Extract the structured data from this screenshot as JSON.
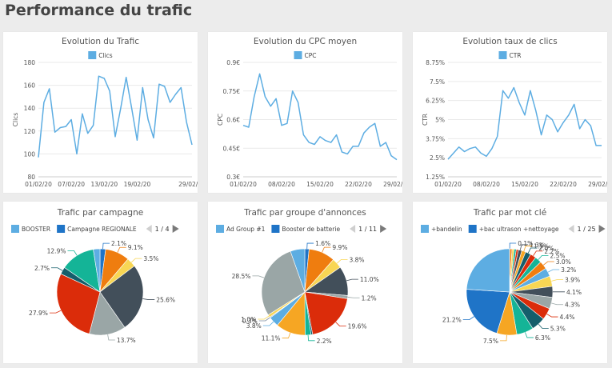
{
  "page": {
    "title": "Performance du trafic"
  },
  "colors": {
    "line": "#5dade2",
    "legend_blue": "#5dade2",
    "legend_darkblue": "#1f74c7",
    "pager_off": "#cfcfcf",
    "pager_on": "#7a7a7a"
  },
  "chart_data": [
    {
      "type": "line",
      "title": "Evolution du Trafic",
      "ylabel": "Clics",
      "legend": [
        "Clics"
      ],
      "x_tick_labels": [
        "01/02/20",
        "07/02/20",
        "13/02/20",
        "19/02/20",
        "29/02/20"
      ],
      "x_tick_index": [
        0,
        6,
        12,
        18,
        28
      ],
      "y_ticks": [
        "80",
        "100",
        "120",
        "140",
        "160",
        "180"
      ],
      "ylim": [
        80,
        180
      ],
      "series": [
        {
          "name": "Clics",
          "values": [
            97,
            145,
            157,
            119,
            123,
            124,
            130,
            100,
            135,
            118,
            125,
            168,
            166,
            155,
            115,
            140,
            167,
            140,
            112,
            158,
            130,
            114,
            161,
            159,
            145,
            152,
            158,
            128,
            108
          ]
        }
      ]
    },
    {
      "type": "line",
      "title": "Evolution du CPC moyen",
      "ylabel": "CPC",
      "legend": [
        "CPC"
      ],
      "x_tick_labels": [
        "01/02/20",
        "08/02/20",
        "15/02/20",
        "22/02/20",
        "29/02/20"
      ],
      "x_tick_index": [
        0,
        7,
        14,
        21,
        28
      ],
      "y_ticks": [
        "0.3€",
        "0.45€",
        "0.6€",
        "0.75€",
        "0.9€"
      ],
      "ylim": [
        0.3,
        0.9
      ],
      "series": [
        {
          "name": "CPC",
          "values": [
            0.57,
            0.56,
            0.72,
            0.84,
            0.72,
            0.67,
            0.71,
            0.57,
            0.58,
            0.75,
            0.69,
            0.52,
            0.48,
            0.47,
            0.51,
            0.49,
            0.48,
            0.52,
            0.43,
            0.42,
            0.46,
            0.46,
            0.53,
            0.56,
            0.58,
            0.46,
            0.48,
            0.41,
            0.39
          ]
        }
      ]
    },
    {
      "type": "line",
      "title": "Evolution taux de clics",
      "ylabel": "CTR",
      "legend": [
        "CTR"
      ],
      "x_tick_labels": [
        "01/02/20",
        "08/02/20",
        "15/02/20",
        "22/02/20",
        "29/02/20"
      ],
      "x_tick_index": [
        0,
        7,
        14,
        21,
        28
      ],
      "y_ticks": [
        "1.25%",
        "2.5%",
        "3.75%",
        "5%",
        "6.25%",
        "7.5%",
        "8.75%"
      ],
      "ylim": [
        1.25,
        8.75
      ],
      "series": [
        {
          "name": "CTR",
          "values": [
            2.4,
            2.8,
            3.2,
            2.9,
            3.1,
            3.2,
            2.8,
            2.6,
            3.1,
            3.9,
            6.9,
            6.4,
            7.1,
            6.1,
            5.3,
            6.9,
            5.6,
            4.0,
            5.3,
            5.0,
            4.2,
            4.8,
            5.3,
            6.0,
            4.4,
            5.0,
            4.6,
            3.3,
            3.3
          ]
        }
      ]
    },
    {
      "type": "pie",
      "title": "Trafic par campagne",
      "legend": [
        "BOOSTER",
        "Campagne REGIONALE"
      ],
      "legend_colors": [
        "#5dade2",
        "#1f74c7"
      ],
      "pager": "1 / 4",
      "slices": [
        {
          "value": 2.1,
          "label": "2.1%",
          "color": "#1f74c7"
        },
        {
          "value": 9.1,
          "label": "9.1%",
          "color": "#ef7d0f"
        },
        {
          "value": 3.5,
          "label": "3.5%",
          "color": "#f8d654"
        },
        {
          "value": 25.6,
          "label": "25.6%",
          "color": "#424f5a"
        },
        {
          "value": 13.7,
          "label": "13.7%",
          "color": "#9aa6a6"
        },
        {
          "value": 27.9,
          "label": "27.9%",
          "color": "#db2c0a"
        },
        {
          "value": 2.7,
          "label": "2.7%",
          "color": "#155e6b"
        },
        {
          "value": 12.9,
          "label": "12.9%",
          "color": "#14b497"
        },
        {
          "value": 2.5,
          "label": "",
          "color": "#5dade2"
        }
      ]
    },
    {
      "type": "pie",
      "title": "Trafic par groupe d'annonces",
      "legend": [
        "Ad Group #1",
        "Booster de batterie"
      ],
      "legend_colors": [
        "#5dade2",
        "#1f74c7"
      ],
      "pager": "1 / 11",
      "slices": [
        {
          "value": 1.6,
          "label": "1.6%",
          "color": "#1f74c7"
        },
        {
          "value": 9.9,
          "label": "9.9%",
          "color": "#ef7d0f"
        },
        {
          "value": 3.8,
          "label": "3.8%",
          "color": "#f8d654"
        },
        {
          "value": 11.0,
          "label": "11.0%",
          "color": "#424f5a"
        },
        {
          "value": 1.2,
          "label": "1.2%",
          "color": "#9aa6a6"
        },
        {
          "value": 19.6,
          "label": "19.6%",
          "color": "#db2c0a"
        },
        {
          "value": 0.6,
          "label": "",
          "color": "#155e6b"
        },
        {
          "value": 2.2,
          "label": "2.2%",
          "color": "#14b497"
        },
        {
          "value": 11.1,
          "label": "11.1%",
          "color": "#f6a623"
        },
        {
          "value": 3.8,
          "label": "3.8%",
          "color": "#5dade2"
        },
        {
          "value": 0.3,
          "label": "0.3%",
          "color": "#7d8ca0"
        },
        {
          "value": 1.0,
          "label": "1.0%",
          "color": "#f8d654"
        },
        {
          "value": 28.5,
          "label": "28.5%",
          "color": "#9aa6a6"
        },
        {
          "value": 5.4,
          "label": "",
          "color": "#5dade2"
        }
      ]
    },
    {
      "type": "pie",
      "title": "Trafic par mot clé",
      "legend": [
        "+bandelin",
        "+bac ultrason +nettoyage"
      ],
      "legend_colors": [
        "#5dade2",
        "#1f74c7"
      ],
      "pager": "1 / 25",
      "slices": [
        {
          "value": 0.1,
          "label": "0.1%",
          "color": "#1f74c7"
        },
        {
          "value": 0.8,
          "label": "",
          "color": "#ef7d0f"
        },
        {
          "value": 0.8,
          "label": "",
          "color": "#f8d654"
        },
        {
          "value": 0.8,
          "label": "",
          "color": "#14b497"
        },
        {
          "value": 0.8,
          "label": "",
          "color": "#db2c0a"
        },
        {
          "value": 1.3,
          "label": "1.3%",
          "color": "#424f5a"
        },
        {
          "value": 1.5,
          "label": "1.5%",
          "color": "#f6a623"
        },
        {
          "value": 2.0,
          "label": "2.0%",
          "color": "#155e6b"
        },
        {
          "value": 2.2,
          "label": "2.2%",
          "color": "#db2c0a"
        },
        {
          "value": 2.5,
          "label": "2.5%",
          "color": "#14b497"
        },
        {
          "value": 3.0,
          "label": "3.0%",
          "color": "#ef7d0f"
        },
        {
          "value": 3.2,
          "label": "3.2%",
          "color": "#5dade2"
        },
        {
          "value": 3.9,
          "label": "3.9%",
          "color": "#f8d654"
        },
        {
          "value": 4.1,
          "label": "4.1%",
          "color": "#424f5a"
        },
        {
          "value": 4.3,
          "label": "4.3%",
          "color": "#9aa6a6"
        },
        {
          "value": 4.4,
          "label": "4.4%",
          "color": "#db2c0a"
        },
        {
          "value": 5.3,
          "label": "5.3%",
          "color": "#155e6b"
        },
        {
          "value": 6.3,
          "label": "6.3%",
          "color": "#14b497"
        },
        {
          "value": 7.5,
          "label": "7.5%",
          "color": "#f6a623"
        },
        {
          "value": 21.2,
          "label": "21.2%",
          "color": "#1f74c7"
        },
        {
          "value": 24.0,
          "label": "",
          "color": "#5dade2"
        }
      ]
    }
  ]
}
